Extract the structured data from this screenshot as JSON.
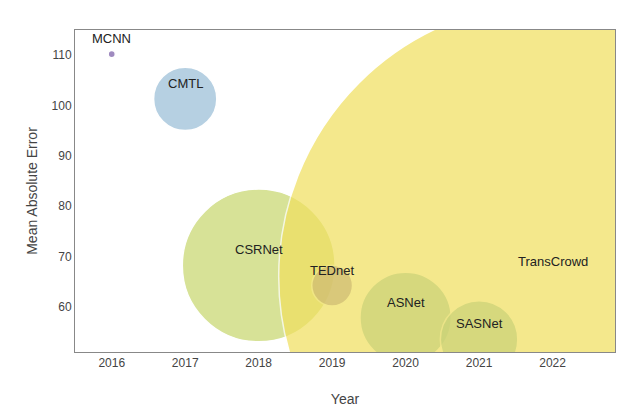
{
  "chart_data": {
    "type": "bubble",
    "x": [
      2016,
      2017,
      2018,
      2019,
      2020,
      2021,
      2022
    ],
    "values": [
      110.2,
      101.3,
      68.2,
      64.2,
      57.8,
      53.5,
      66.0
    ],
    "sizes": [
      15,
      1200,
      7000,
      500,
      2500,
      1800,
      90000
    ],
    "colors": [
      "#7B5EA7",
      "#9BBFD8",
      "#C8D870",
      "#7B5EA7",
      "#6AAFB8",
      "#6AAFB8",
      "#F0E060"
    ],
    "labels": [
      "MCNN",
      "CMTL",
      "CSRNet",
      "TEDnet",
      "ASNet",
      "SASNet",
      "TransCrowd"
    ],
    "xlabel": "Year",
    "ylabel": "Mean Absolute Error",
    "xlim": [
      2015.5,
      2022.85
    ],
    "ylim": [
      51,
      115
    ],
    "xticks": [
      2016,
      2017,
      2018,
      2019,
      2020,
      2021,
      2022
    ],
    "yticks": [
      60,
      70,
      80,
      90,
      100,
      110
    ],
    "grid": false
  }
}
